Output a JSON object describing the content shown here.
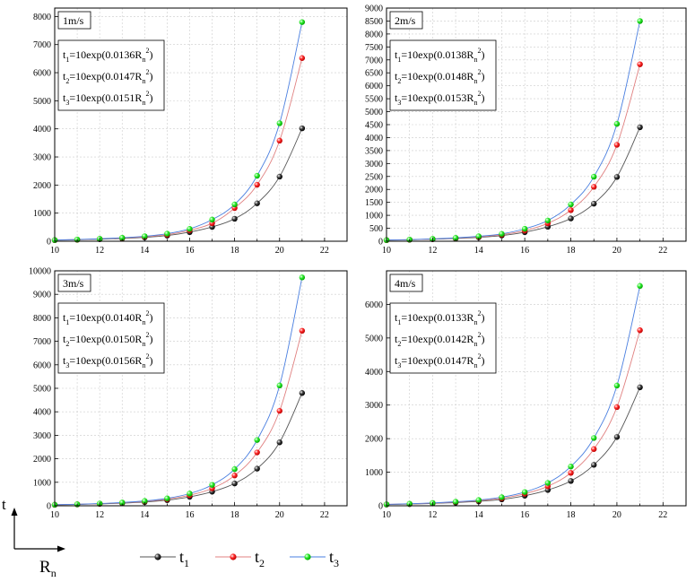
{
  "chart_data": [
    {
      "type": "scatter",
      "title": "1m/s",
      "xlim": [
        10,
        23
      ],
      "ylim": [
        0,
        8300
      ],
      "xticks": [
        10,
        12,
        14,
        16,
        18,
        20,
        22
      ],
      "yticks": [
        0,
        1000,
        2000,
        3000,
        4000,
        5000,
        6000,
        7000,
        8000
      ],
      "grid": true,
      "equations": [
        {
          "prefix": "t",
          "sub": "1",
          "body": "=10exp(0.0136R",
          "rsub": "n",
          "sup": "2",
          "close": ")"
        },
        {
          "prefix": "t",
          "sub": "2",
          "body": "=10exp(0.0147R",
          "rsub": "n",
          "sup": "2",
          "close": ")"
        },
        {
          "prefix": "t",
          "sub": "3",
          "body": "=10exp(0.0151R",
          "rsub": "n",
          "sup": "2",
          "close": ")"
        }
      ],
      "x": [
        10,
        11,
        12,
        13,
        14,
        15,
        16,
        17,
        18,
        19,
        20,
        21
      ],
      "series": [
        {
          "name": "t1",
          "values": [
            38,
            52,
            72,
            99,
            138,
            200,
            325,
            510,
            800,
            1350,
            2300,
            4020
          ]
        },
        {
          "name": "t2",
          "values": [
            43,
            58,
            82,
            115,
            160,
            235,
            390,
            640,
            1180,
            2010,
            3580,
            6520
          ]
        },
        {
          "name": "t3",
          "values": [
            45,
            62,
            88,
            125,
            178,
            270,
            440,
            770,
            1310,
            2330,
            4200,
            7800
          ]
        }
      ]
    },
    {
      "type": "scatter",
      "title": "2m/s",
      "xlim": [
        10,
        23
      ],
      "ylim": [
        0,
        9000
      ],
      "xticks": [
        10,
        12,
        14,
        16,
        18,
        20,
        22
      ],
      "yticks": [
        0,
        500,
        1000,
        1500,
        2000,
        2500,
        3000,
        3500,
        4000,
        4500,
        5000,
        5500,
        6000,
        6500,
        7000,
        7500,
        8000,
        8500,
        9000
      ],
      "grid": true,
      "equations": [
        {
          "prefix": "t",
          "sub": "1",
          "body": "=10exp(0.0138R",
          "rsub": "n",
          "sup": "2",
          "close": ")"
        },
        {
          "prefix": "t",
          "sub": "2",
          "body": "=10exp(0.0148R",
          "rsub": "n",
          "sup": "2",
          "close": ")"
        },
        {
          "prefix": "t",
          "sub": "3",
          "body": "=10exp(0.0153R",
          "rsub": "n",
          "sup": "2",
          "close": ")"
        }
      ],
      "x": [
        10,
        11,
        12,
        13,
        14,
        15,
        16,
        17,
        18,
        19,
        20,
        21
      ],
      "series": [
        {
          "name": "t1",
          "values": [
            40,
            55,
            78,
            105,
            150,
            220,
            350,
            560,
            880,
            1450,
            2480,
            4400
          ]
        },
        {
          "name": "t2",
          "values": [
            44,
            60,
            86,
            120,
            170,
            255,
            410,
            690,
            1200,
            2100,
            3720,
            6830
          ]
        },
        {
          "name": "t3",
          "values": [
            46,
            64,
            92,
            130,
            190,
            285,
            480,
            800,
            1420,
            2490,
            4530,
            8500
          ]
        }
      ]
    },
    {
      "type": "scatter",
      "title": "3m/s",
      "xlim": [
        10,
        23
      ],
      "ylim": [
        0,
        10000
      ],
      "xticks": [
        10,
        12,
        14,
        16,
        18,
        20,
        22
      ],
      "yticks": [
        0,
        1000,
        2000,
        3000,
        4000,
        5000,
        6000,
        7000,
        8000,
        9000,
        10000
      ],
      "grid": true,
      "equations": [
        {
          "prefix": "t",
          "sub": "1",
          "body": "=10exp(0.0140R",
          "rsub": "n",
          "sup": "2",
          "close": ")"
        },
        {
          "prefix": "t",
          "sub": "2",
          "body": "=10exp(0.0150R",
          "rsub": "n",
          "sup": "2",
          "close": ")"
        },
        {
          "prefix": "t",
          "sub": "3",
          "body": "=10exp(0.0156R",
          "rsub": "n",
          "sup": "2",
          "close": ")"
        }
      ],
      "x": [
        10,
        11,
        12,
        13,
        14,
        15,
        16,
        17,
        18,
        19,
        20,
        21
      ],
      "series": [
        {
          "name": "t1",
          "values": [
            40,
            57,
            80,
            110,
            160,
            240,
            380,
            600,
            950,
            1580,
            2700,
            4800
          ]
        },
        {
          "name": "t2",
          "values": [
            45,
            63,
            90,
            128,
            185,
            280,
            450,
            740,
            1290,
            2270,
            4040,
            7450
          ]
        },
        {
          "name": "t3",
          "values": [
            47,
            66,
            96,
            138,
            205,
            315,
            520,
            890,
            1560,
            2800,
            5120,
            9720
          ]
        }
      ]
    },
    {
      "type": "scatter",
      "title": "4m/s",
      "xlim": [
        10,
        23
      ],
      "ylim": [
        0,
        7000
      ],
      "xticks": [
        10,
        12,
        14,
        16,
        18,
        20,
        22
      ],
      "yticks": [
        0,
        1000,
        2000,
        3000,
        4000,
        5000,
        6000
      ],
      "grid": true,
      "equations": [
        {
          "prefix": "t",
          "sub": "1",
          "body": "=10exp(0.0133R",
          "rsub": "n",
          "sup": "2",
          "close": ")"
        },
        {
          "prefix": "t",
          "sub": "2",
          "body": "=10exp(0.0142R",
          "rsub": "n",
          "sup": "2",
          "close": ")"
        },
        {
          "prefix": "t",
          "sub": "3",
          "body": "=10exp(0.0147R",
          "rsub": "n",
          "sup": "2",
          "close": ")"
        }
      ],
      "x": [
        10,
        11,
        12,
        13,
        14,
        15,
        16,
        17,
        18,
        19,
        20,
        21
      ],
      "series": [
        {
          "name": "t1",
          "values": [
            37,
            50,
            70,
            95,
            132,
            190,
            300,
            470,
            740,
            1220,
            2050,
            3530
          ]
        },
        {
          "name": "t2",
          "values": [
            41,
            56,
            79,
            110,
            155,
            225,
            360,
            580,
            980,
            1690,
            2940,
            5230
          ]
        },
        {
          "name": "t3",
          "values": [
            43,
            60,
            85,
            120,
            170,
            255,
            410,
            680,
            1170,
            2020,
            3580,
            6550
          ]
        }
      ]
    }
  ],
  "colors": {
    "t1": "#000000",
    "t2": "#ff0000",
    "t3": "#00dd00",
    "curve_t1": "#555555",
    "curve_t2": "#e08080",
    "curve_t3": "#4a7fe0",
    "grid": "#cccccc",
    "frame": "#000000"
  },
  "legend": [
    {
      "prefix": "t",
      "sub": "1",
      "color_key": "t1"
    },
    {
      "prefix": "t",
      "sub": "2",
      "color_key": "t2"
    },
    {
      "prefix": "t",
      "sub": "3",
      "color_key": "t3"
    }
  ],
  "axis_labels": {
    "y": "t",
    "x_main": "R",
    "x_sub": "n"
  }
}
